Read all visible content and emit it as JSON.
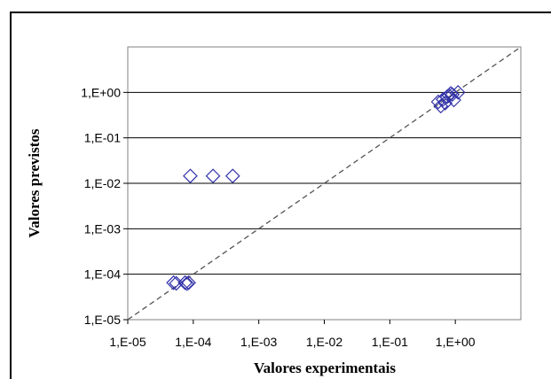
{
  "chart_data": {
    "type": "scatter",
    "title": "",
    "xlabel": "Valores experimentais",
    "ylabel": "Valores previstos",
    "xscale": "log",
    "yscale": "log",
    "xlim": [
      1e-05,
      10
    ],
    "ylim": [
      1e-05,
      10
    ],
    "x_ticks": [
      1e-05,
      0.0001,
      0.001,
      0.01,
      0.1,
      1
    ],
    "x_tick_labels": [
      "1,E-05",
      "1,E-04",
      "1,E-03",
      "1,E-02",
      "1,E-01",
      "1,E+00"
    ],
    "y_ticks": [
      1e-05,
      0.0001,
      0.001,
      0.01,
      0.1,
      1
    ],
    "y_tick_labels": [
      "1,E-05",
      "1,E-04",
      "1,E-03",
      "1,E-02",
      "1,E-01",
      "1,E+00"
    ],
    "grid": "horizontal",
    "legend": "none",
    "marker": "diamond-open",
    "marker_color": "#3333aa",
    "reference_line": {
      "style": "dashed",
      "from": [
        1e-05,
        1e-05
      ],
      "to": [
        10,
        10
      ],
      "color": "#555555"
    },
    "series": [
      {
        "points": [
          {
            "x": 5e-05,
            "y": 6.5e-05
          },
          {
            "x": 5.5e-05,
            "y": 6.3e-05
          },
          {
            "x": 7.5e-05,
            "y": 6.5e-05
          },
          {
            "x": 8e-05,
            "y": 6.2e-05
          },
          {
            "x": 8.5e-05,
            "y": 6.5e-05
          },
          {
            "x": 9e-05,
            "y": 0.0145
          },
          {
            "x": 0.0002,
            "y": 0.0145
          },
          {
            "x": 0.0004,
            "y": 0.0145
          },
          {
            "x": 0.55,
            "y": 0.62
          },
          {
            "x": 0.6,
            "y": 0.5
          },
          {
            "x": 0.65,
            "y": 0.7
          },
          {
            "x": 0.7,
            "y": 0.58
          },
          {
            "x": 0.75,
            "y": 0.8
          },
          {
            "x": 0.8,
            "y": 0.85
          },
          {
            "x": 0.85,
            "y": 0.95
          },
          {
            "x": 0.9,
            "y": 0.9
          },
          {
            "x": 0.95,
            "y": 0.68
          },
          {
            "x": 1.1,
            "y": 1.0
          }
        ]
      }
    ]
  }
}
